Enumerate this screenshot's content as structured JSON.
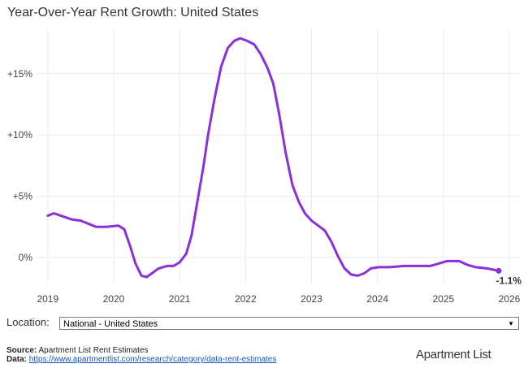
{
  "chart_data": {
    "type": "line",
    "title": "Year-Over-Year Rent Growth: United States",
    "x": [
      2019.0,
      2019.09,
      2019.2,
      2019.36,
      2019.5,
      2019.73,
      2019.89,
      2020.07,
      2020.16,
      2020.25,
      2020.33,
      2020.42,
      2020.5,
      2020.58,
      2020.68,
      2020.81,
      2020.91,
      2021.0,
      2021.1,
      2021.18,
      2021.27,
      2021.36,
      2021.43,
      2021.53,
      2021.63,
      2021.73,
      2021.83,
      2021.92,
      2022.02,
      2022.13,
      2022.23,
      2022.33,
      2022.42,
      2022.51,
      2022.61,
      2022.71,
      2022.81,
      2022.9,
      2023.0,
      2023.1,
      2023.2,
      2023.3,
      2023.4,
      2023.5,
      2023.6,
      2023.7,
      2023.8,
      2023.9,
      2024.02,
      2024.19,
      2024.4,
      2024.6,
      2024.8,
      2024.93,
      2025.05,
      2025.24,
      2025.36,
      2025.49,
      2025.66,
      2025.84
    ],
    "series": [
      {
        "name": "National - United States",
        "color": "#8b2fd9",
        "values": [
          3.4,
          3.6,
          3.4,
          3.1,
          3.0,
          2.5,
          2.5,
          2.6,
          2.3,
          0.9,
          -0.5,
          -1.5,
          -1.6,
          -1.3,
          -0.9,
          -0.7,
          -0.7,
          -0.4,
          0.3,
          1.8,
          4.6,
          7.4,
          10.0,
          13.0,
          15.6,
          17.1,
          17.7,
          17.9,
          17.7,
          17.4,
          16.6,
          15.5,
          14.2,
          11.7,
          8.5,
          5.9,
          4.5,
          3.6,
          3.0,
          2.6,
          2.2,
          1.3,
          0.1,
          -0.9,
          -1.4,
          -1.5,
          -1.3,
          -0.9,
          -0.8,
          -0.8,
          -0.7,
          -0.7,
          -0.7,
          -0.5,
          -0.3,
          -0.3,
          -0.6,
          -0.8,
          -0.9,
          -1.1
        ],
        "value_labels": [
          null,
          null,
          null,
          null,
          null,
          null,
          null,
          null,
          null,
          null,
          null,
          null,
          null,
          null,
          null,
          null,
          null,
          null,
          null,
          null,
          null,
          null,
          null,
          null,
          null,
          null,
          null,
          null,
          null,
          null,
          null,
          null,
          null,
          null,
          null,
          null,
          null,
          null,
          null,
          null,
          null,
          null,
          null,
          null,
          null,
          null,
          null,
          null,
          null,
          null,
          null,
          null,
          null,
          null,
          null,
          null,
          null,
          null,
          null,
          "-1.1%"
        ]
      }
    ],
    "xlim": [
      2018.83,
      2026.16
    ],
    "xticks": [
      2019,
      2020,
      2021,
      2022,
      2023,
      2024,
      2025,
      2026
    ],
    "ylim": [
      -2.2,
      18.7
    ],
    "yticks": [
      {
        "value": 0,
        "label": "0%"
      },
      {
        "value": 5,
        "label": "+5%"
      },
      {
        "value": 10,
        "label": "+10%"
      },
      {
        "value": 15,
        "label": "+15%"
      }
    ],
    "grid": true
  },
  "controls": {
    "location_label": "Location:",
    "location_value": "National - United States"
  },
  "footer": {
    "source_label": "Source:",
    "source": "Apartment List Rent Estimates",
    "data_label": "Data:",
    "data_url": "https://www.apartmentlist.com/research/category/data-rent-estimates",
    "logo": "Apartment List"
  }
}
